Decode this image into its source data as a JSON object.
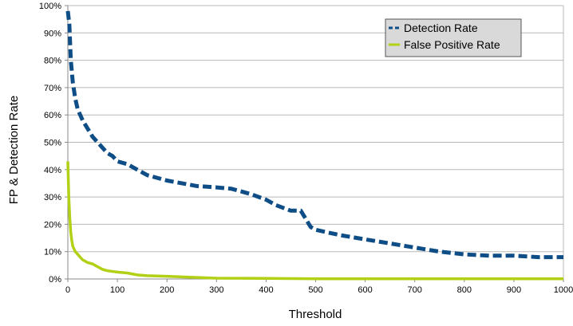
{
  "colors": {
    "detection": "#0f4d86",
    "false_positive": "#b3cf16",
    "grid": "#b8b8b8",
    "axis": "#888888",
    "legend_bg": "#d9d9d9"
  },
  "chart_data": {
    "type": "line",
    "title": "",
    "xlabel": "Threshold",
    "ylabel": "FP & Detection Rate",
    "xlim": [
      0,
      1000
    ],
    "ylim": [
      0,
      100
    ],
    "x_ticks": [
      "0",
      "100",
      "200",
      "300",
      "400",
      "500",
      "600",
      "700",
      "800",
      "900",
      "1000"
    ],
    "y_ticks": [
      "0%",
      "10%",
      "20%",
      "30%",
      "40%",
      "50%",
      "60%",
      "70%",
      "80%",
      "90%",
      "100%"
    ],
    "grid": "horizontal",
    "legend_position": "top-right",
    "series": [
      {
        "name": "Detection Rate",
        "style": "dashed",
        "color": "#0f4d86",
        "x": [
          0,
          3,
          6,
          10,
          15,
          20,
          30,
          40,
          50,
          60,
          70,
          80,
          90,
          100,
          120,
          140,
          160,
          180,
          200,
          230,
          260,
          300,
          330,
          350,
          370,
          400,
          420,
          450,
          470,
          480,
          490,
          500,
          550,
          600,
          650,
          700,
          750,
          800,
          850,
          900,
          950,
          1000
        ],
        "y": [
          98,
          93,
          80,
          72,
          66,
          62,
          58,
          55,
          52,
          50,
          48,
          46,
          45,
          43,
          42,
          40,
          38,
          37,
          36,
          35,
          34,
          33.5,
          33,
          32,
          31,
          29,
          27,
          25,
          25,
          22,
          19,
          18,
          16,
          14.5,
          13,
          11.5,
          10,
          9,
          8.5,
          8.5,
          8,
          8
        ]
      },
      {
        "name": "False Positive Rate",
        "style": "solid",
        "color": "#b3cf16",
        "x": [
          0,
          2,
          4,
          6,
          8,
          10,
          15,
          20,
          25,
          30,
          40,
          50,
          60,
          70,
          80,
          100,
          120,
          140,
          160,
          200,
          250,
          300,
          400,
          500,
          600,
          800,
          1000
        ],
        "y": [
          43,
          30,
          22,
          17,
          14,
          12,
          10,
          9,
          8,
          7,
          6,
          5.5,
          4.5,
          3.5,
          3,
          2.5,
          2.2,
          1.5,
          1.2,
          1,
          0.6,
          0.3,
          0.2,
          0.1,
          0.1,
          0.1,
          0.1
        ]
      }
    ]
  }
}
